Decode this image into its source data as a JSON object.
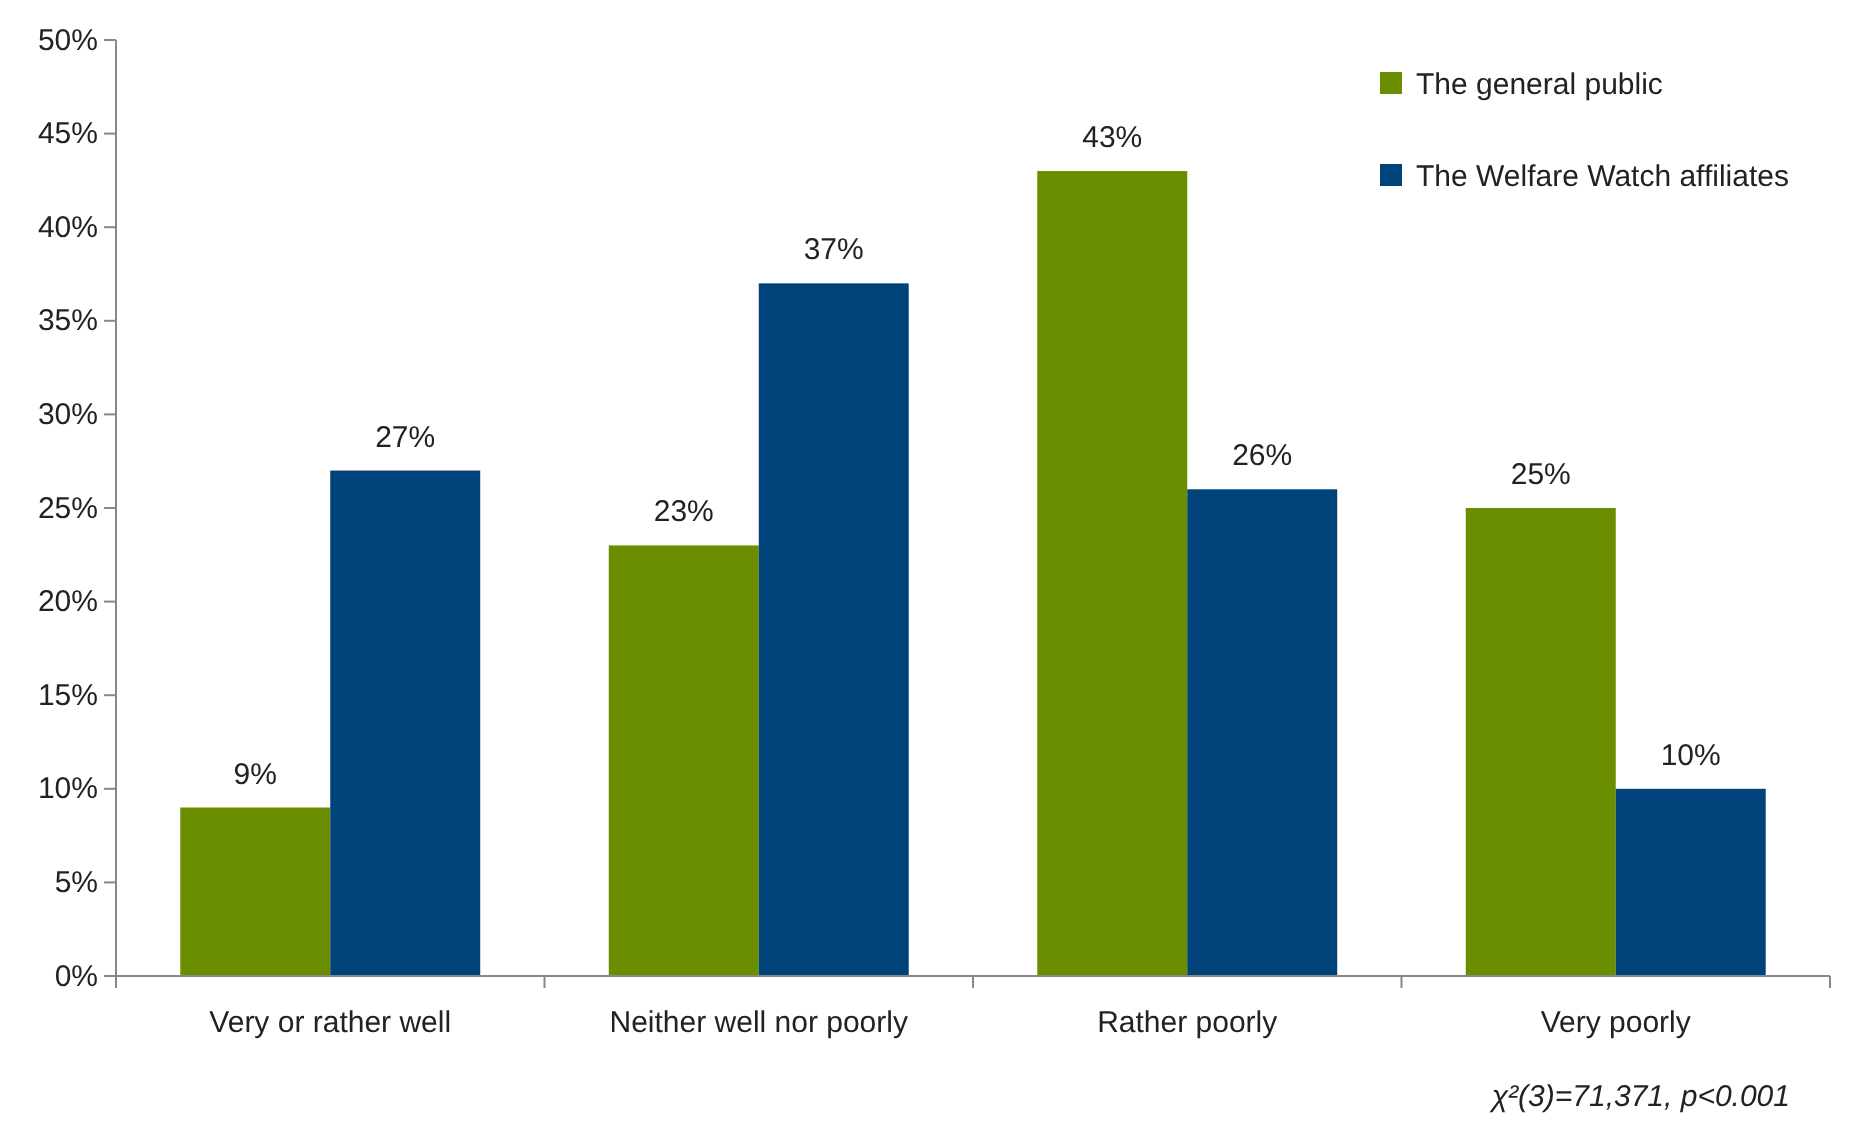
{
  "chart_data": {
    "type": "bar",
    "categories": [
      "Very or rather well",
      "Neither well nor poorly",
      "Rather poorly",
      "Very poorly"
    ],
    "series": [
      {
        "name": "The general public",
        "color": "#6b8e00",
        "values": [
          9,
          23,
          43,
          25
        ],
        "value_labels": [
          "9%",
          "23%",
          "43%",
          "25%"
        ]
      },
      {
        "name": "The Welfare Watch affiliates",
        "color": "#00427a",
        "values": [
          27,
          37,
          26,
          10
        ],
        "value_labels": [
          "27%",
          "37%",
          "26%",
          "10%"
        ]
      }
    ],
    "ylim": [
      0,
      50
    ],
    "yticks": [
      {
        "value": 0,
        "label": "0%"
      },
      {
        "value": 5,
        "label": "5%"
      },
      {
        "value": 10,
        "label": "10%"
      },
      {
        "value": 15,
        "label": "15%"
      },
      {
        "value": 20,
        "label": "20%"
      },
      {
        "value": 25,
        "label": "25%"
      },
      {
        "value": 30,
        "label": "30%"
      },
      {
        "value": 35,
        "label": "35%"
      },
      {
        "value": 40,
        "label": "40%"
      },
      {
        "value": 45,
        "label": "45%"
      },
      {
        "value": 50,
        "label": "50%"
      }
    ],
    "grid": false,
    "legend": "top right",
    "annotations": [
      "χ²(3)=71,371,  p<0.001"
    ]
  }
}
